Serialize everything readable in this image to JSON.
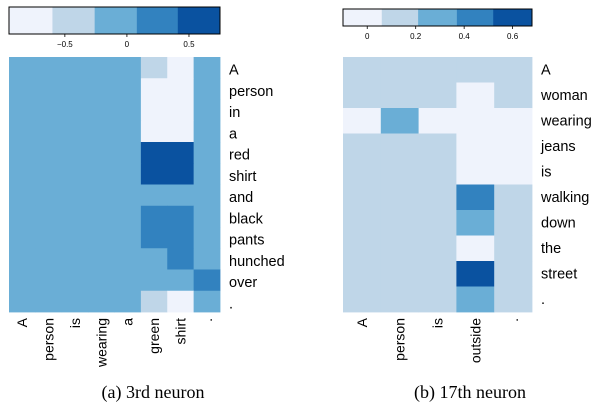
{
  "colors": {
    "bins": [
      "#eff3fc",
      "#bfd6e8",
      "#6aaed6",
      "#3282bf",
      "#0a52a0"
    ],
    "outline": "#000000"
  },
  "chart_data": [
    {
      "type": "heatmap",
      "caption": "(a) 3rd neuron",
      "colorbar": {
        "ticks": [
          {
            "value": -0.5,
            "label": "−0.5"
          },
          {
            "value": 0,
            "label": "0"
          },
          {
            "value": 0.5,
            "label": "0.5"
          }
        ],
        "range": [
          -0.95,
          0.75
        ],
        "bin_edges": [
          -0.95,
          -0.6,
          -0.26,
          0.08,
          0.41,
          0.75
        ]
      },
      "x_labels": [
        "A",
        "person",
        "is",
        "wearing",
        "a",
        "green",
        "shirt",
        "."
      ],
      "y_labels": [
        "A",
        "person",
        "in",
        "a",
        "red",
        "shirt",
        "and",
        "black",
        "pants",
        "hunched",
        "over",
        "."
      ],
      "matrix": [
        [
          2,
          2,
          2,
          2,
          2,
          1,
          0,
          2
        ],
        [
          2,
          2,
          2,
          2,
          2,
          0,
          0,
          2
        ],
        [
          2,
          2,
          2,
          2,
          2,
          0,
          0,
          2
        ],
        [
          2,
          2,
          2,
          2,
          2,
          0,
          0,
          2
        ],
        [
          2,
          2,
          2,
          2,
          2,
          4,
          4,
          2
        ],
        [
          2,
          2,
          2,
          2,
          2,
          4,
          4,
          2
        ],
        [
          2,
          2,
          2,
          2,
          2,
          2,
          2,
          2
        ],
        [
          2,
          2,
          2,
          2,
          2,
          3,
          3,
          2
        ],
        [
          2,
          2,
          2,
          2,
          2,
          3,
          3,
          2
        ],
        [
          2,
          2,
          2,
          2,
          2,
          2,
          3,
          2
        ],
        [
          2,
          2,
          2,
          2,
          2,
          2,
          2,
          3
        ],
        [
          2,
          2,
          2,
          2,
          2,
          1,
          0,
          2
        ]
      ]
    },
    {
      "type": "heatmap",
      "caption": "(b) 17th neuron",
      "colorbar": {
        "ticks": [
          {
            "value": 0,
            "label": "0"
          },
          {
            "value": 0.2,
            "label": "0.2"
          },
          {
            "value": 0.4,
            "label": "0.4"
          },
          {
            "value": 0.6,
            "label": "0.6"
          }
        ],
        "range": [
          -0.1,
          0.68
        ],
        "bin_edges": [
          -0.1,
          0.06,
          0.21,
          0.37,
          0.52,
          0.68
        ]
      },
      "x_labels": [
        "A",
        "person",
        "is",
        "outside",
        "."
      ],
      "y_labels": [
        "A",
        "woman",
        "wearing",
        "jeans",
        "is",
        "walking",
        "down",
        "the",
        "street",
        "."
      ],
      "matrix": [
        [
          1,
          1,
          1,
          1,
          1
        ],
        [
          1,
          1,
          1,
          0,
          1
        ],
        [
          0,
          2,
          0,
          0,
          0
        ],
        [
          1,
          1,
          1,
          0,
          0
        ],
        [
          1,
          1,
          1,
          0,
          0
        ],
        [
          1,
          1,
          1,
          3,
          1
        ],
        [
          1,
          1,
          1,
          2,
          1
        ],
        [
          1,
          1,
          1,
          0,
          1
        ],
        [
          1,
          1,
          1,
          4,
          1
        ],
        [
          1,
          1,
          1,
          2,
          1
        ]
      ]
    }
  ]
}
